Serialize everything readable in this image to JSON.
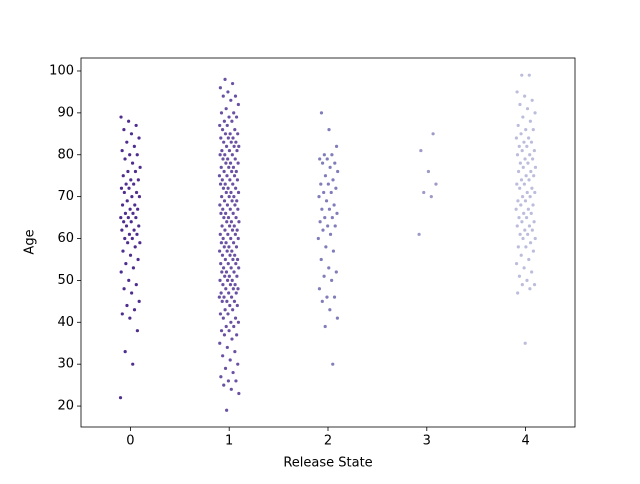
{
  "chart_data": {
    "type": "strip",
    "x_label": "Release State",
    "y_label": "Age",
    "categories": [
      "0",
      "1",
      "2",
      "3",
      "4"
    ],
    "colors": [
      "#4f2d8f",
      "#6a51a3",
      "#807dba",
      "#9e9ac8",
      "#bcbddc"
    ],
    "values": [
      [
        22,
        30,
        33,
        38,
        41,
        42,
        43,
        44,
        45,
        47,
        48,
        49,
        50,
        52,
        53,
        54,
        55,
        56,
        57,
        58,
        59,
        59,
        60,
        60,
        61,
        61,
        62,
        62,
        63,
        63,
        64,
        64,
        65,
        65,
        65,
        66,
        66,
        67,
        67,
        68,
        68,
        69,
        70,
        70,
        71,
        71,
        72,
        72,
        73,
        73,
        74,
        74,
        75,
        76,
        76,
        77,
        78,
        79,
        80,
        80,
        81,
        82,
        83,
        84,
        85,
        86,
        87,
        88,
        89
      ],
      [
        19,
        23,
        24,
        25,
        26,
        26,
        27,
        28,
        29,
        30,
        31,
        32,
        33,
        34,
        35,
        36,
        37,
        37,
        38,
        38,
        39,
        39,
        40,
        40,
        41,
        41,
        42,
        42,
        43,
        43,
        44,
        44,
        45,
        45,
        45,
        46,
        46,
        46,
        47,
        47,
        47,
        48,
        48,
        48,
        49,
        49,
        49,
        50,
        50,
        50,
        51,
        51,
        51,
        52,
        52,
        52,
        53,
        53,
        53,
        54,
        54,
        54,
        55,
        55,
        55,
        56,
        56,
        56,
        57,
        57,
        57,
        58,
        58,
        58,
        59,
        59,
        59,
        60,
        60,
        60,
        61,
        61,
        61,
        62,
        62,
        62,
        63,
        63,
        63,
        64,
        64,
        64,
        65,
        65,
        65,
        66,
        66,
        66,
        67,
        67,
        67,
        68,
        68,
        68,
        69,
        69,
        69,
        70,
        70,
        70,
        71,
        71,
        71,
        72,
        72,
        72,
        73,
        73,
        73,
        74,
        74,
        74,
        75,
        75,
        75,
        76,
        76,
        76,
        77,
        77,
        77,
        78,
        78,
        78,
        79,
        79,
        79,
        80,
        80,
        80,
        81,
        81,
        81,
        82,
        82,
        82,
        83,
        83,
        83,
        84,
        84,
        84,
        85,
        85,
        85,
        86,
        86,
        87,
        87,
        88,
        88,
        89,
        89,
        90,
        90,
        91,
        92,
        93,
        94,
        94,
        95,
        96,
        97,
        98
      ],
      [
        30,
        39,
        41,
        43,
        45,
        46,
        46,
        48,
        50,
        51,
        52,
        53,
        55,
        57,
        58,
        60,
        61,
        62,
        63,
        63,
        64,
        65,
        65,
        66,
        67,
        67,
        68,
        69,
        70,
        71,
        71,
        72,
        73,
        73,
        74,
        75,
        76,
        77,
        78,
        78,
        79,
        79,
        80,
        80,
        82,
        86,
        90
      ],
      [
        61,
        70,
        71,
        73,
        76,
        81,
        85
      ],
      [
        35,
        47,
        48,
        49,
        49,
        50,
        51,
        52,
        53,
        54,
        55,
        56,
        57,
        58,
        58,
        59,
        60,
        60,
        61,
        61,
        62,
        62,
        63,
        63,
        64,
        64,
        65,
        65,
        66,
        66,
        67,
        67,
        68,
        68,
        69,
        69,
        70,
        70,
        71,
        71,
        72,
        72,
        73,
        73,
        74,
        74,
        75,
        75,
        76,
        76,
        77,
        77,
        78,
        78,
        79,
        79,
        80,
        80,
        81,
        81,
        82,
        82,
        83,
        83,
        84,
        84,
        85,
        86,
        86,
        87,
        88,
        89,
        90,
        91,
        92,
        93,
        94,
        95,
        99,
        99
      ]
    ],
    "ylim": [
      15.0,
      103.1
    ],
    "yticks": [
      20,
      30,
      40,
      50,
      60,
      70,
      80,
      90,
      100
    ]
  }
}
